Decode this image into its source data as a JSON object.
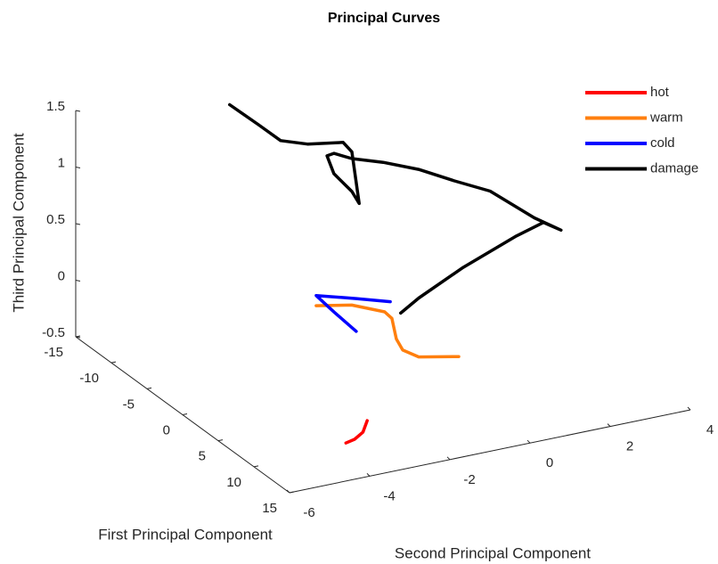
{
  "chart_data": {
    "type": "line3d",
    "title": "Principal Curves",
    "xlabel": "First Principal Component",
    "ylabel": "Second Principal Component",
    "zlabel": "Third Principal Component",
    "xlim": [
      -15,
      15
    ],
    "xticks": [
      -15,
      -10,
      -5,
      0,
      5,
      10,
      15
    ],
    "ylim": [
      -6,
      4
    ],
    "yticks": [
      -6,
      -4,
      -2,
      0,
      2,
      4
    ],
    "zlim": [
      -0.5,
      1.5
    ],
    "zticks": [
      -0.5,
      0,
      0.5,
      1,
      1.5
    ],
    "legend": "top-right",
    "series": [
      {
        "name": "hot",
        "color": "#ff0000",
        "x": [
          9.3,
          9.0,
          8.2,
          6.6
        ],
        "y": [
          -3.58,
          -3.31,
          -2.96,
          -2.57
        ],
        "z": [
          -0.5,
          -0.5,
          -0.5,
          -0.5
        ]
      },
      {
        "name": "warm",
        "color": "#ff7f0e",
        "x": [
          0,
          0,
          0,
          0,
          0,
          0,
          0,
          0
        ],
        "y": [
          -2.67,
          -1.78,
          -0.96,
          -0.78,
          -0.67,
          -0.51,
          -0.11,
          0.89
        ],
        "z": [
          0.22,
          0.16,
          0.04,
          -0.03,
          -0.22,
          -0.33,
          -0.42,
          -0.49
        ]
      },
      {
        "name": "cold",
        "color": "#0000ff",
        "x": [
          0,
          0,
          0,
          0,
          0
        ],
        "y": [
          -0.82,
          -1.67,
          -2.67,
          -2.22,
          -1.67
        ],
        "z": [
          0.12,
          0.21,
          0.31,
          0.13,
          -0.08
        ]
      },
      {
        "name": "damage",
        "color": "#000000",
        "x": [
          -15,
          -15,
          -15,
          -15,
          -15,
          -15,
          -15,
          -15,
          -15,
          -15,
          -15,
          -15,
          -15,
          -12,
          -9,
          -5,
          -2,
          0,
          0,
          0,
          0,
          0,
          0
        ],
        "y": [
          -2.16,
          -1.44,
          -0.89,
          -0.22,
          0.67,
          0.89,
          1.07,
          0.89,
          0.44,
          0.27,
          0.44,
          0.89,
          1.67,
          2.02,
          2.38,
          2.56,
          3.13,
          3.44,
          3.0,
          2.33,
          1.0,
          -0.11,
          -0.56
        ],
        "z": [
          1.27,
          1.04,
          0.86,
          0.78,
          0.73,
          0.63,
          0.16,
          0.28,
          0.47,
          0.64,
          0.65,
          0.57,
          0.48,
          0.53,
          0.54,
          0.62,
          0.48,
          0.44,
          0.54,
          0.47,
          0.29,
          0.1,
          0.0
        ]
      }
    ]
  }
}
